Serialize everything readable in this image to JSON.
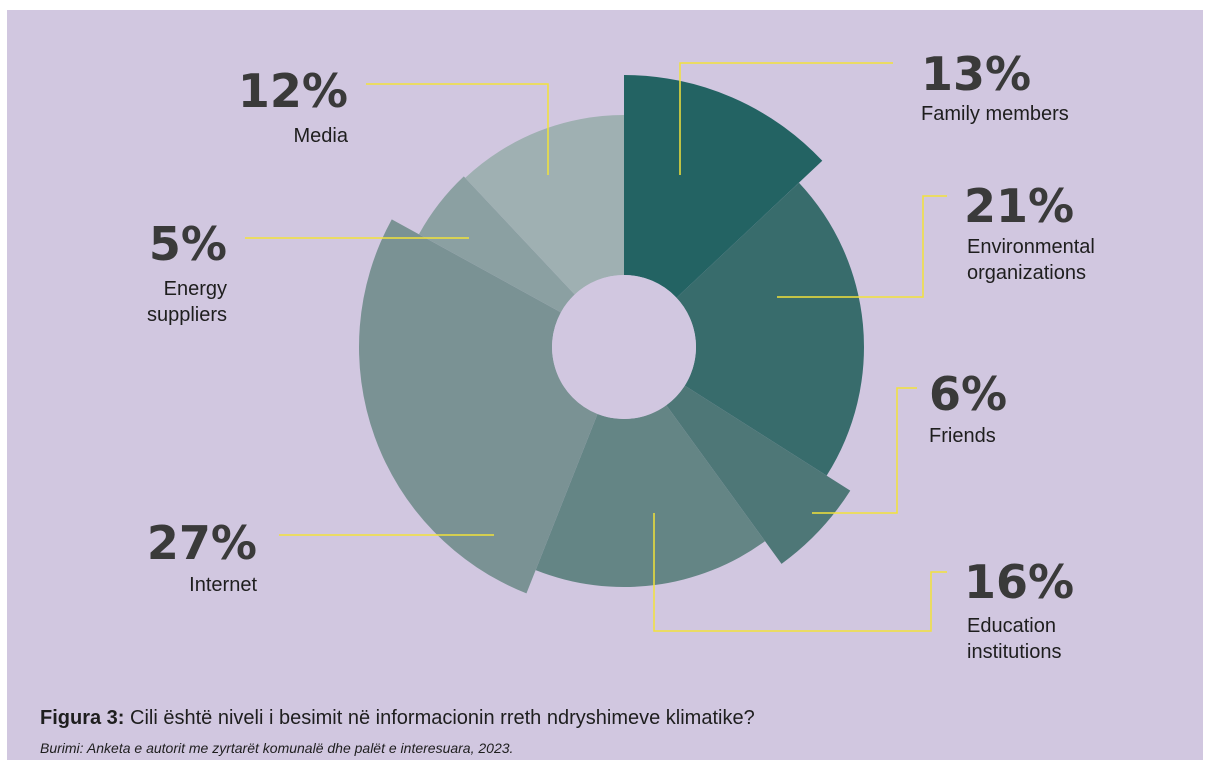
{
  "chart_data": {
    "type": "pie",
    "variant": "polar-area-donut",
    "title": "",
    "series": [
      {
        "name": "Family members",
        "value": 13,
        "label": "13%",
        "color": "#236363"
      },
      {
        "name": "Environmental organizations",
        "value": 21,
        "label": "21%",
        "color": "#386c6c"
      },
      {
        "name": "Friends",
        "value": 6,
        "label": "6%",
        "color": "#4e7777"
      },
      {
        "name": "Education institutions",
        "value": 16,
        "label": "16%",
        "color": "#648585"
      },
      {
        "name": "Internet",
        "value": 27,
        "label": "27%",
        "color": "#7a9294"
      },
      {
        "name": "Energy suppliers",
        "value": 5,
        "label": "5%",
        "color": "#8ba0a2"
      },
      {
        "name": "Media",
        "value": 12,
        "label": "12%",
        "color": "#9fb0b2"
      }
    ],
    "leader_line_color": "#f2e23a",
    "legend": "none"
  },
  "caption": {
    "prefix": "Figura 3:",
    "text": " Cili është niveli i besimit në informacionin rreth ndryshimeve klimatike?"
  },
  "source": "Burimi: Anketa e autorit me zyrtarët komunalë dhe palët e interesuara, 2023.",
  "labels": {
    "family": {
      "pct": "13%",
      "lines": [
        "Family members"
      ]
    },
    "environmental": {
      "pct": "21%",
      "lines": [
        "Environmental",
        "organizations"
      ]
    },
    "friends": {
      "pct": "6%",
      "lines": [
        "Friends"
      ]
    },
    "education": {
      "pct": "16%",
      "lines": [
        "Education",
        "institutions"
      ]
    },
    "internet": {
      "pct": "27%",
      "lines": [
        "Internet"
      ]
    },
    "energy": {
      "pct": "5%",
      "lines": [
        "Energy",
        "suppliers"
      ]
    },
    "media": {
      "pct": "12%",
      "lines": [
        "Media"
      ]
    }
  },
  "colors": {
    "background": "#d1c7e0"
  }
}
